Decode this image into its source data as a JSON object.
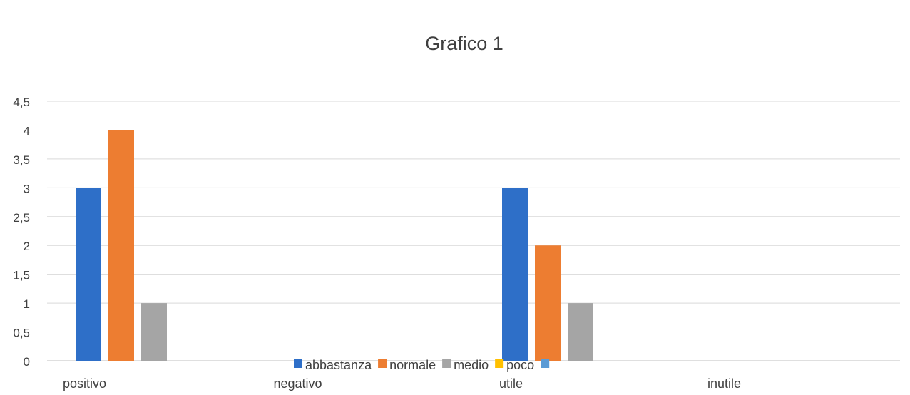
{
  "chart_data": {
    "type": "bar",
    "title": "Grafico 1",
    "categories": [
      "positivo",
      "negativo",
      "utile",
      "inutile"
    ],
    "series": [
      {
        "name": "abbastanza",
        "color": "#2E6FC8",
        "values": [
          3,
          0,
          3,
          0
        ]
      },
      {
        "name": "normale",
        "color": "#ED7D31",
        "values": [
          4,
          0,
          2,
          0
        ]
      },
      {
        "name": "medio",
        "color": "#A5A5A5",
        "values": [
          1,
          0,
          1,
          0
        ]
      },
      {
        "name": "poco",
        "color": "#FFC000",
        "values": [
          0,
          0,
          0,
          0
        ]
      },
      {
        "name": "",
        "color": "#5B9BD5",
        "values": [
          0,
          0,
          0,
          0
        ]
      }
    ],
    "yticks": [
      "0",
      "0,5",
      "1",
      "1,5",
      "2",
      "2,5",
      "3",
      "3,5",
      "4",
      "4,5"
    ],
    "ylim": [
      0,
      4.5
    ],
    "grid": true,
    "legend_position": "bottom"
  }
}
